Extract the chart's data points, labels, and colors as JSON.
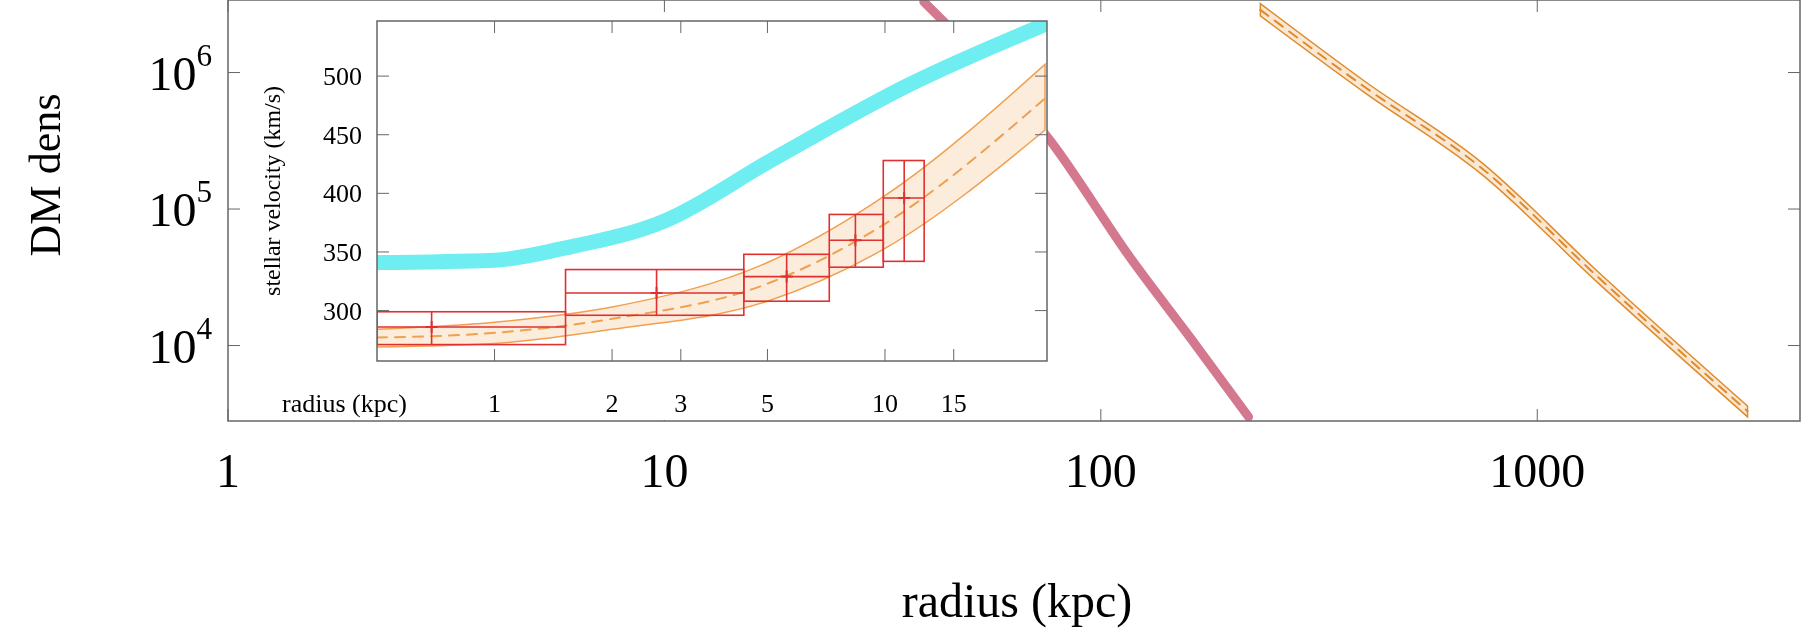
{
  "chart_data": [
    {
      "type": "line",
      "xlabel": "radius (kpc)",
      "ylabel": "DM dens",
      "log": "xy",
      "xlim": [
        1,
        4000
      ],
      "ylim": [
        2800,
        3400000
      ],
      "xticks": [
        1,
        10,
        100,
        1000
      ],
      "yticks": [
        {
          "value": 10000,
          "label": "10$^{4}$"
        },
        {
          "value": 100000,
          "label": "10$^{5}$"
        },
        {
          "value": 1000000,
          "label": "10$^{6}$"
        }
      ],
      "grid": false,
      "series": [
        {
          "color": "#d4788f",
          "line_style": "solid",
          "x": [
            39.3,
            77,
            118,
            160,
            218
          ],
          "values": [
            3300000,
            310000,
            42000,
            11500,
            3000
          ]
        },
        {
          "color": "#e08a2a",
          "line_style": "dashed",
          "x": [
            232,
            403,
            745,
            1374,
            3033
          ],
          "values": [
            2880000,
            780000,
            200000,
            32000,
            3300
          ],
          "lower": [
            2600000,
            710000,
            180000,
            29000,
            3000
          ],
          "upper": [
            3200000,
            860000,
            220000,
            35000,
            3600
          ]
        }
      ]
    },
    {
      "type": "line",
      "xlabel": "radius (kpc)",
      "ylabel": "stellar velocity (km/s)",
      "log": "x",
      "xlim": [
        0.5,
        26
      ],
      "ylim": [
        257,
        547
      ],
      "xticks": [
        1,
        2,
        3,
        5,
        10,
        15
      ],
      "yticks": [
        300,
        350,
        400,
        450,
        500
      ],
      "grid": false,
      "series": [
        {
          "color": "#6eeef0",
          "line_style": "solid",
          "x": [
            0.5,
            1.0,
            1.5,
            2.75,
            5.1,
            11.6,
            25.7
          ],
          "values": [
            341,
            343,
            353,
            377,
            428,
            493,
            544
          ]
        },
        {
          "color": "#f0a050",
          "line_style": "dashed",
          "x": [
            0.5,
            1,
            2,
            5,
            10,
            25.7
          ],
          "values": [
            277,
            281,
            293,
            323,
            374,
            481
          ],
          "lower": [
            269,
            272,
            284,
            308,
            353,
            454
          ],
          "upper": [
            284,
            290,
            303,
            341,
            398,
            510
          ]
        },
        {
          "type": "scatter",
          "color": "#e03030",
          "marker": "cross",
          "x": [
            0.69,
            2.6,
            5.6,
            8.4,
            11.2
          ],
          "values": [
            286,
            315,
            329,
            360,
            396
          ],
          "xerrors": [
            [
              0.5,
              1.52
            ],
            [
              1.52,
              4.35
            ],
            [
              4.35,
              7.2
            ],
            [
              7.2,
              9.9
            ],
            [
              9.9,
              12.6
            ]
          ],
          "errors": [
            [
              271,
              299
            ],
            [
              296,
              335
            ],
            [
              308,
              348
            ],
            [
              337,
              382
            ],
            [
              342,
              428
            ]
          ]
        }
      ]
    }
  ]
}
